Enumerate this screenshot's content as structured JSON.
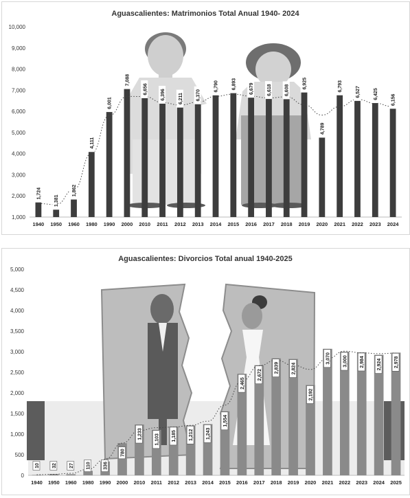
{
  "chart_data": [
    {
      "type": "bar",
      "title": "Aguascalientes: Matrimonios Total Anual 1940- 2024",
      "categories": [
        "1940",
        "1950",
        "1960",
        "1980",
        "1990",
        "2000",
        "2010",
        "2011",
        "2012",
        "2013",
        "2014",
        "2015",
        "2016",
        "2017",
        "2018",
        "2019",
        "2020",
        "2021",
        "2022",
        "2023",
        "2024"
      ],
      "values": [
        1724,
        1381,
        1862,
        4111,
        6001,
        7088,
        6656,
        6396,
        6211,
        6370,
        6790,
        6893,
        6679,
        6618,
        6608,
        6925,
        4789,
        6793,
        6527,
        6425,
        6156
      ],
      "value_labels": [
        "1,724",
        "1,381",
        "1,862",
        "4,111",
        "6,001",
        "7,088",
        "6,656",
        "6,396",
        "6,211",
        "6,370",
        "6,790",
        "6,893",
        "6,679",
        "6,618",
        "6,608",
        "6,925",
        "4,789",
        "6,793",
        "6,527",
        "6,425",
        "6,156"
      ],
      "ylim": [
        1000,
        10000
      ],
      "yticks": [
        "1,000",
        "2,000",
        "3,000",
        "4,000",
        "5,000",
        "6,000",
        "7,000",
        "8,000",
        "9,000",
        "10,000"
      ],
      "trendline": "dotted",
      "bar_color": "#3d3d3d",
      "grid": false
    },
    {
      "type": "bar",
      "title": "Aguascalientes: Divorcios Total anual 1940-2025",
      "categories": [
        "1940",
        "1950",
        "1960",
        "1980",
        "1990",
        "2000",
        "2010",
        "2011",
        "2012",
        "2013",
        "2014",
        "2015",
        "2016",
        "2017",
        "2018",
        "2019",
        "2020",
        "2021",
        "2022",
        "2023",
        "2024",
        "2025"
      ],
      "values": [
        10,
        32,
        27,
        110,
        336,
        780,
        1233,
        1103,
        1185,
        1212,
        1243,
        1554,
        2465,
        2672,
        2839,
        2824,
        2192,
        3070,
        3000,
        2984,
        2924,
        2978
      ],
      "value_labels": [
        "10",
        "32",
        "27",
        "110",
        "336",
        "780",
        "1,233",
        "1,103",
        "1,185",
        "1,212",
        "1,243",
        "1,554",
        "2,465",
        "2,672",
        "2,839",
        "2,824",
        "2,192",
        "3,070",
        "3,000",
        "2,984",
        "2,924",
        "2,978"
      ],
      "ylim": [
        0,
        5000
      ],
      "yticks": [
        "0",
        "500",
        "1,000",
        "1,500",
        "2,000",
        "2,500",
        "3,000",
        "3,500",
        "4,000",
        "4,500",
        "5,000"
      ],
      "trendline": "dotted",
      "bar_color": "#8a8a8a",
      "grid": false
    }
  ]
}
